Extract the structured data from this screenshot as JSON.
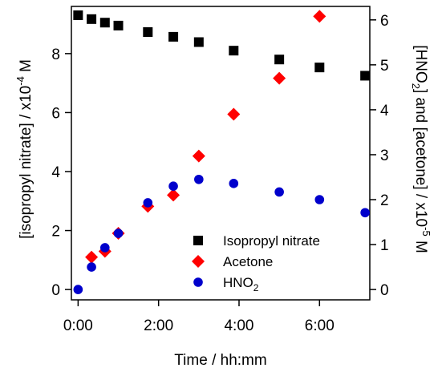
{
  "chart_data": {
    "type": "scatter",
    "title": "",
    "xlabel": "Time / hh:mm",
    "ylabel_left": "[isopropyl nitrate] / x10",
    "ylabel_left_exp": "-4",
    "ylabel_left_unit": " M",
    "ylabel_right": "[HNO",
    "ylabel_right_sub": "2",
    "ylabel_right_mid": "] and [acetone] / x10",
    "ylabel_right_exp": "-5",
    "ylabel_right_unit": " M",
    "x_unit": "minutes",
    "xlim": [
      -10,
      435
    ],
    "ylim_left": [
      -0.35,
      9.6
    ],
    "ylim_right": [
      -0.23,
      6.3
    ],
    "x_ticks": [
      {
        "value": 0,
        "label": "0:00"
      },
      {
        "value": 120,
        "label": "2:00"
      },
      {
        "value": 240,
        "label": "4:00"
      },
      {
        "value": 360,
        "label": "6:00"
      }
    ],
    "y_left_ticks": [
      {
        "value": 0,
        "label": "0"
      },
      {
        "value": 2,
        "label": "2"
      },
      {
        "value": 4,
        "label": "4"
      },
      {
        "value": 6,
        "label": "6"
      },
      {
        "value": 8,
        "label": "8"
      }
    ],
    "y_right_ticks": [
      {
        "value": 0,
        "label": "0"
      },
      {
        "value": 1,
        "label": "1"
      },
      {
        "value": 2,
        "label": "2"
      },
      {
        "value": 3,
        "label": "3"
      },
      {
        "value": 4,
        "label": "4"
      },
      {
        "value": 5,
        "label": "5"
      },
      {
        "value": 6,
        "label": "6"
      }
    ],
    "legend_position": "bottom-right",
    "series": [
      {
        "name": "Isopropyl nitrate",
        "legend_label": "Isopropyl nitrate",
        "marker": "square",
        "color": "#000000",
        "axis": "left",
        "x": [
          0,
          20,
          40,
          60,
          104,
          142,
          180,
          232,
          300,
          360,
          428
        ],
        "y": [
          9.3,
          9.17,
          9.05,
          8.95,
          8.73,
          8.57,
          8.39,
          8.1,
          7.8,
          7.53,
          7.25
        ]
      },
      {
        "name": "Acetone",
        "legend_label": "Acetone",
        "marker": "diamond",
        "color": "#ff0000",
        "axis": "right",
        "x": [
          20,
          40,
          60,
          104,
          142,
          180,
          232,
          300,
          360
        ],
        "y": [
          0.72,
          0.85,
          1.25,
          1.85,
          2.1,
          2.97,
          3.9,
          4.7,
          6.08
        ]
      },
      {
        "name": "HNO2",
        "legend_label": "HNO",
        "legend_sub": "2",
        "marker": "circle",
        "color": "#0000cc",
        "axis": "right",
        "x": [
          0,
          20,
          40,
          60,
          104,
          142,
          180,
          232,
          300,
          360,
          428
        ],
        "y": [
          0.0,
          0.5,
          0.93,
          1.25,
          1.93,
          2.3,
          2.45,
          2.36,
          2.17,
          2.0,
          1.71
        ]
      }
    ]
  }
}
